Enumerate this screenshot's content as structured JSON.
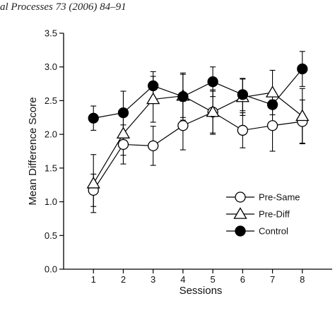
{
  "header": {
    "journal_text": "al Processes 73 (2006) 84–91"
  },
  "chart_data": {
    "type": "line",
    "title": "",
    "xlabel": "Sessions",
    "ylabel": "Mean Difference Score",
    "x": [
      1,
      2,
      3,
      4,
      5,
      6,
      7,
      8
    ],
    "x_ticks": [
      "1",
      "2",
      "3",
      "4",
      "5",
      "6",
      "7",
      "8"
    ],
    "xlim": [
      0,
      9
    ],
    "ylim": [
      0.0,
      3.5
    ],
    "y_ticks": [
      "0.0",
      "0.5",
      "1.0",
      "1.5",
      "2.0",
      "2.5",
      "3.0",
      "3.5"
    ],
    "grid": false,
    "legend_position": "bottom-right",
    "series": [
      {
        "name": "Pre-Same",
        "marker": "open-circle",
        "values": [
          1.17,
          1.85,
          1.83,
          2.13,
          2.33,
          2.06,
          2.13,
          2.19
        ],
        "error": [
          0.24,
          0.29,
          0.29,
          0.36,
          0.33,
          0.26,
          0.38,
          0.32
        ]
      },
      {
        "name": "Pre-Diff",
        "marker": "open-triangle",
        "values": [
          1.27,
          2.01,
          2.52,
          2.57,
          2.33,
          2.55,
          2.62,
          2.27
        ],
        "error": [
          0.43,
          0.32,
          0.34,
          0.32,
          0.31,
          0.27,
          0.33,
          0.41
        ]
      },
      {
        "name": "Control",
        "marker": "filled-circle",
        "values": [
          2.24,
          2.32,
          2.72,
          2.56,
          2.78,
          2.59,
          2.44,
          2.97
        ],
        "error": [
          0.18,
          0.32,
          0.21,
          0.35,
          0.22,
          0.24,
          0.0,
          0.26
        ]
      }
    ],
    "colors": {
      "ink": "#000000",
      "open_fill": "#ffffff"
    }
  }
}
